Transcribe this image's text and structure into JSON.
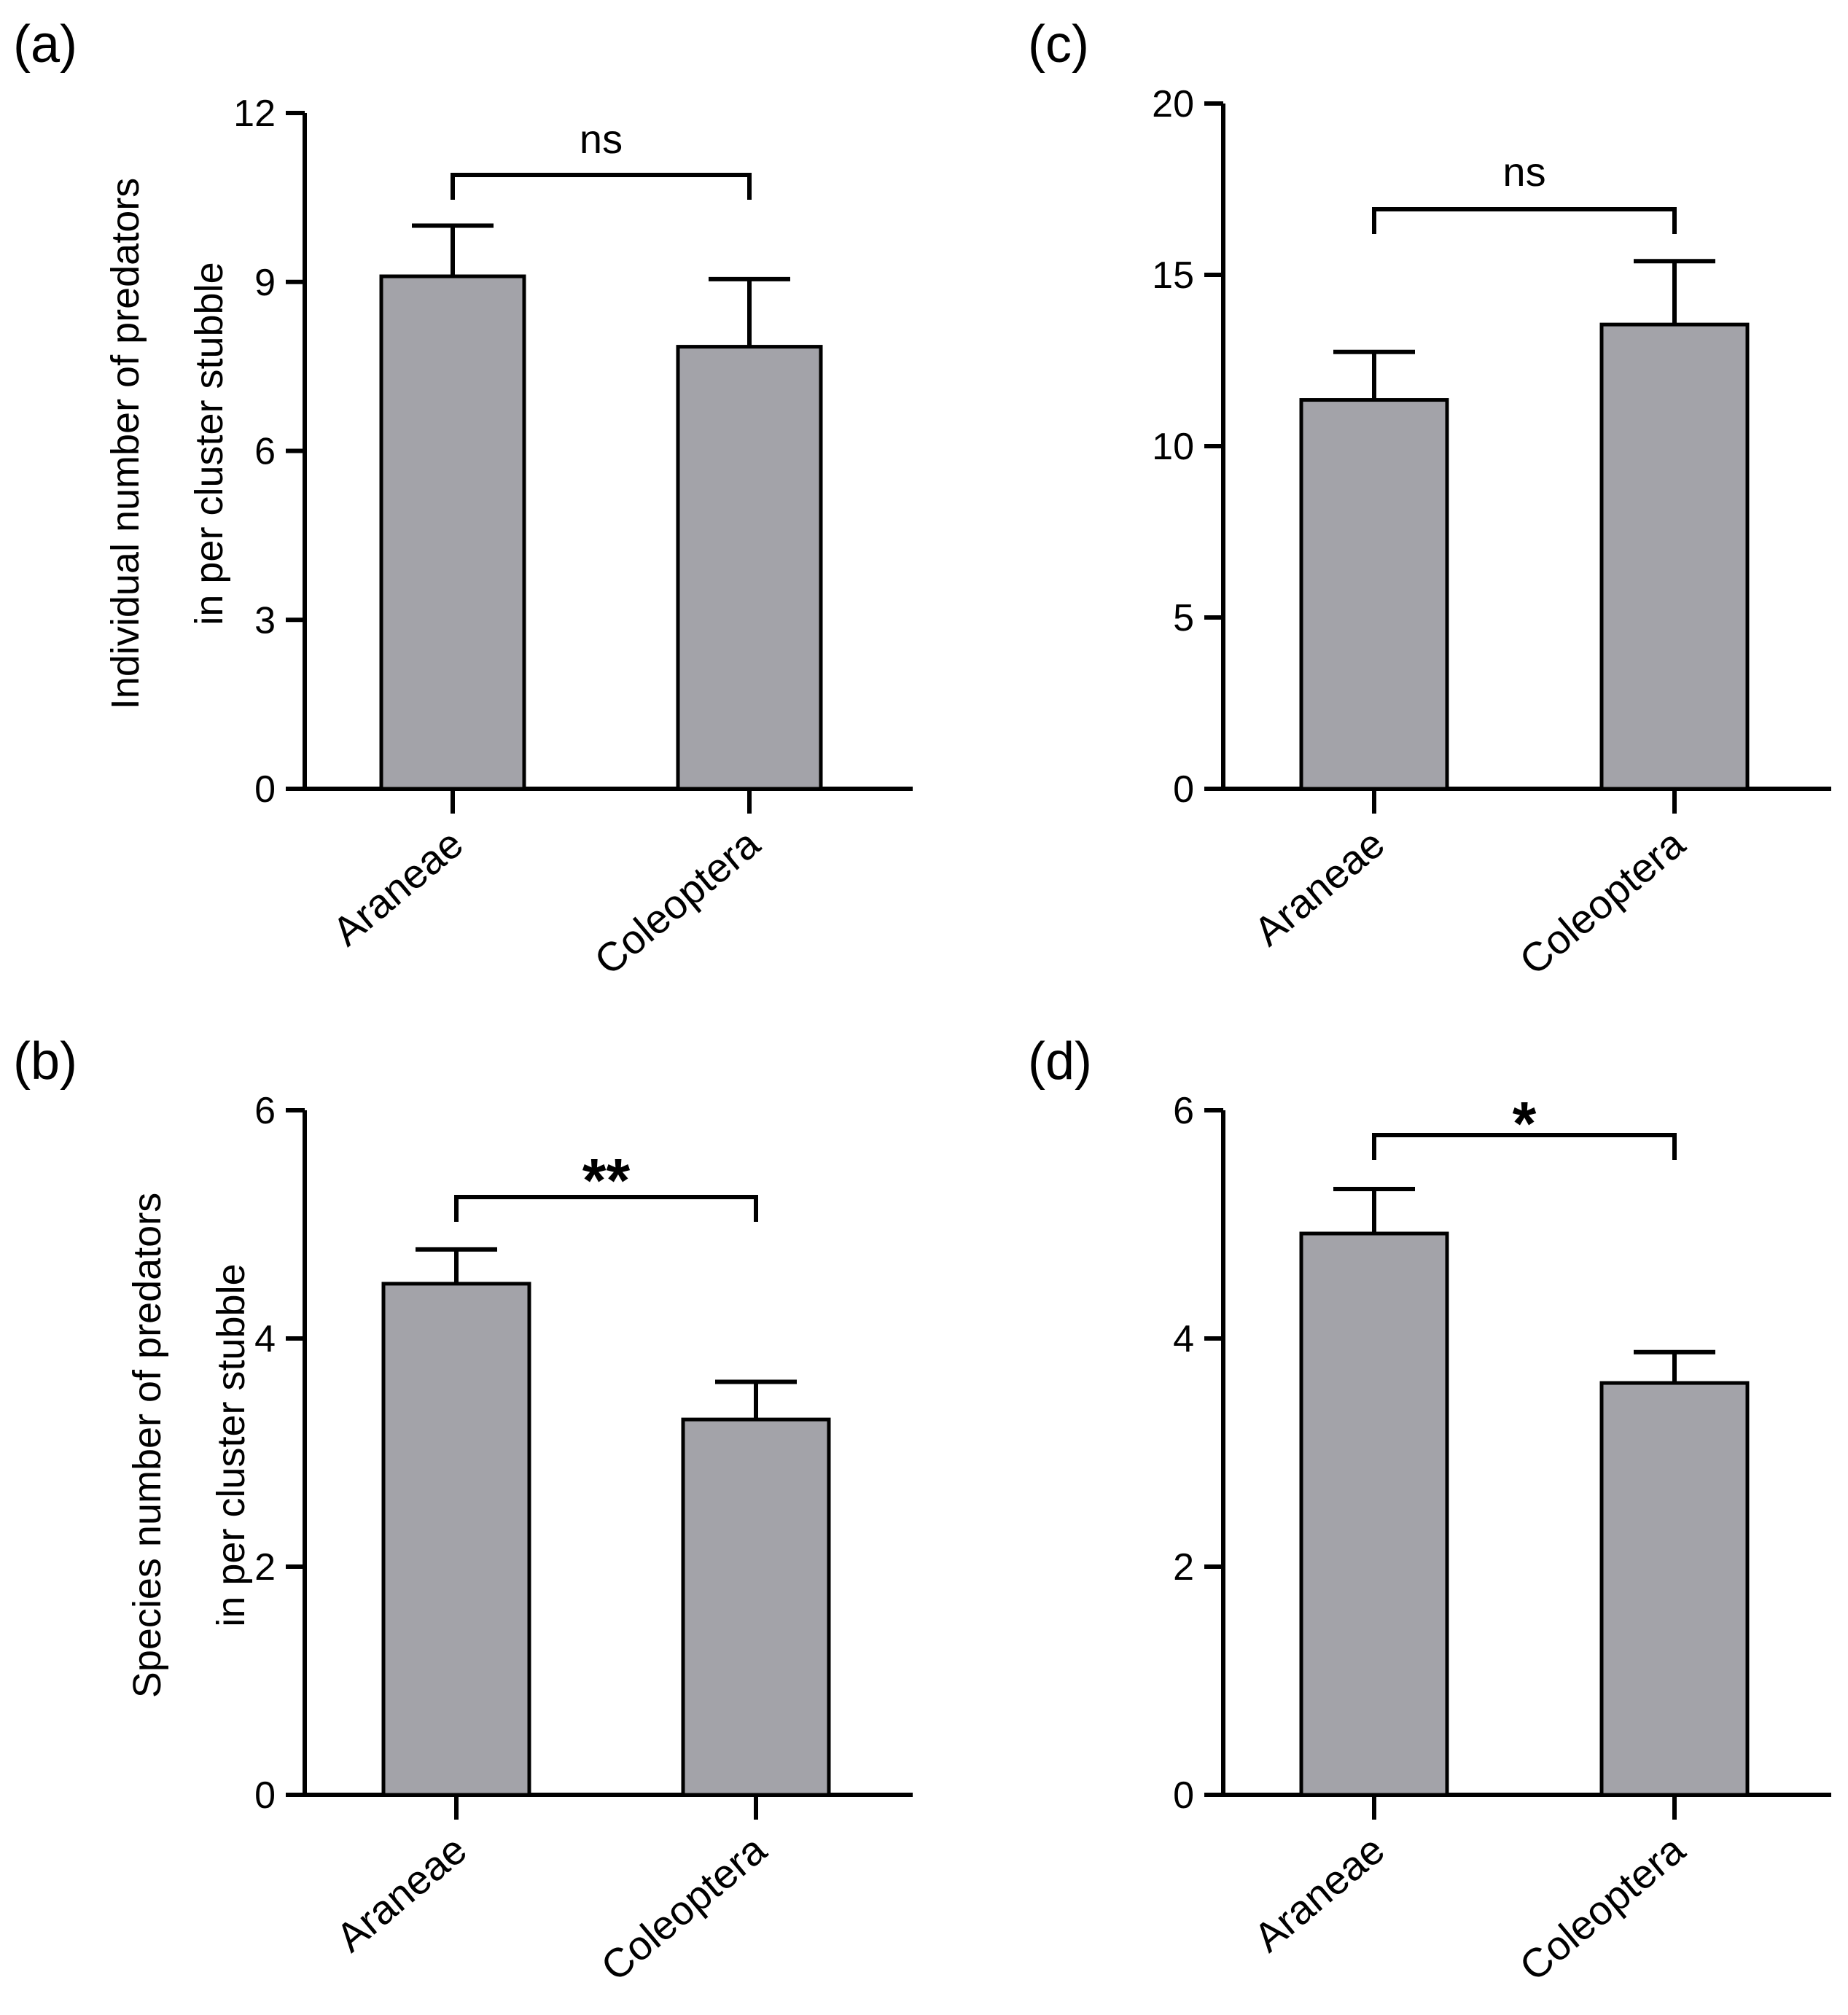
{
  "figure": {
    "colors": {
      "bar_fill": "#a3a3a9",
      "stroke": "#000000",
      "background": "#ffffff"
    }
  },
  "chart_data": [
    {
      "panel": "(a)",
      "type": "bar",
      "categories": [
        "Araneae",
        "Coleoptera"
      ],
      "values": [
        9.1,
        7.85
      ],
      "errors": [
        0.9,
        1.2
      ],
      "ylabel": [
        "Individual number of predators",
        "in per cluster stubble"
      ],
      "ylim": [
        0,
        12
      ],
      "yticks": [
        0,
        3,
        6,
        9,
        12
      ],
      "significance": {
        "label": "ns",
        "bold": false
      },
      "grid": false
    },
    {
      "panel": "(c)",
      "type": "bar",
      "categories": [
        "Araneae",
        "Coleoptera"
      ],
      "values": [
        11.35,
        13.55
      ],
      "errors": [
        1.4,
        1.85
      ],
      "ylabel": [
        "",
        ""
      ],
      "ylim": [
        0,
        20
      ],
      "yticks": [
        0,
        5,
        10,
        15,
        20
      ],
      "significance": {
        "label": "ns",
        "bold": false
      },
      "grid": false
    },
    {
      "panel": "(b)",
      "type": "bar",
      "categories": [
        "Araneae",
        "Coleoptera"
      ],
      "values": [
        4.48,
        3.29
      ],
      "errors": [
        0.3,
        0.33
      ],
      "ylabel": [
        "Species number of predators",
        "in per cluster stubble"
      ],
      "ylim": [
        0,
        6
      ],
      "yticks": [
        0,
        2,
        4,
        6
      ],
      "significance": {
        "label": "**",
        "bold": true
      },
      "grid": false
    },
    {
      "panel": "(d)",
      "type": "bar",
      "categories": [
        "Araneae",
        "Coleoptera"
      ],
      "values": [
        4.92,
        3.61
      ],
      "errors": [
        0.39,
        0.27
      ],
      "ylabel": [
        "",
        ""
      ],
      "ylim": [
        0,
        6
      ],
      "yticks": [
        0,
        2,
        4,
        6
      ],
      "significance": {
        "label": "*",
        "bold": true
      },
      "grid": false
    }
  ]
}
